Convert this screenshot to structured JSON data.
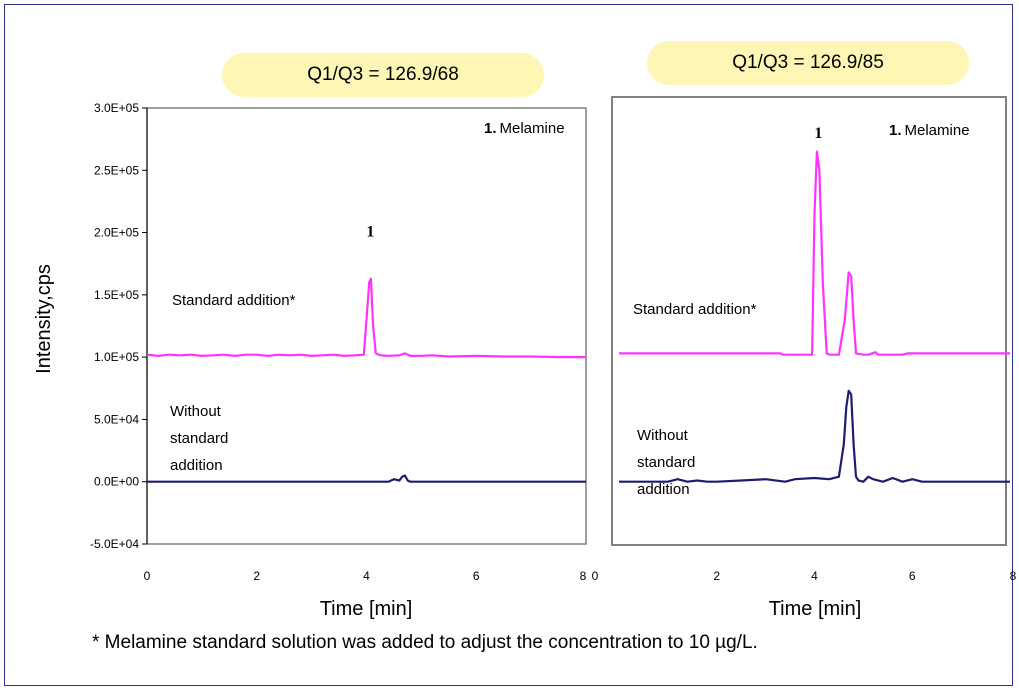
{
  "chart_data": [
    {
      "type": "line",
      "title": "Q1/Q3 = 126.9/68",
      "xlabel": "Time [min]",
      "ylabel": "Intensity,cps",
      "xlim": [
        0,
        8
      ],
      "ylim": [
        -50000,
        300000
      ],
      "x_ticks": [
        "0",
        "2",
        "4",
        "6",
        "8"
      ],
      "y_ticks": [
        "-5.0E+04",
        "0.0E+00",
        "5.0E+04",
        "1.0E+05",
        "1.5E+05",
        "2.0E+05",
        "2.5E+05",
        "3.0E+05"
      ],
      "legend_label": "1. Melamine",
      "legend_number": "1.",
      "legend_text": "Melamine",
      "peak_label": "1",
      "peak_label_position": {
        "x": 4.07,
        "y": 197000
      },
      "series": [
        {
          "name": "Standard addition*",
          "color": "#ff33ff",
          "label_lines": [
            "Standard addition*"
          ],
          "x": [
            0,
            0.2,
            0.4,
            0.6,
            0.8,
            1.0,
            1.2,
            1.4,
            1.6,
            1.8,
            2.0,
            2.2,
            2.4,
            2.6,
            2.8,
            3.0,
            3.2,
            3.4,
            3.6,
            3.8,
            3.95,
            4.0,
            4.05,
            4.08,
            4.12,
            4.17,
            4.25,
            4.4,
            4.6,
            4.7,
            4.8,
            5.0,
            5.2,
            5.5,
            6.0,
            6.5,
            7.0,
            7.5,
            8.0
          ],
          "y": [
            102000,
            101000,
            102000,
            101500,
            102000,
            101000,
            101500,
            102000,
            101000,
            102000,
            102000,
            101000,
            102000,
            101500,
            102000,
            101000,
            101500,
            102000,
            101000,
            101500,
            102000,
            130000,
            160000,
            163000,
            125000,
            103000,
            101500,
            101000,
            101500,
            103000,
            101000,
            101000,
            101500,
            100500,
            101000,
            100500,
            100500,
            100000,
            100000
          ]
        },
        {
          "name": "Without standard addition",
          "color": "#1c1c73",
          "label_lines": [
            "Without",
            "standard",
            "addition"
          ],
          "x": [
            0,
            1,
            2,
            3,
            4,
            4.4,
            4.5,
            4.6,
            4.65,
            4.7,
            4.75,
            4.8,
            4.9,
            5.0,
            6.0,
            7.0,
            8.0
          ],
          "y": [
            0,
            0,
            0,
            0,
            0,
            0,
            2000,
            1000,
            4000,
            5000,
            1000,
            0,
            0,
            0,
            0,
            0,
            0
          ]
        }
      ]
    },
    {
      "type": "line",
      "title": "Q1/Q3 = 126.9/85",
      "xlabel": "Time [min]",
      "ylabel": "",
      "xlim": [
        0,
        8
      ],
      "ylim": [
        -50000,
        300000
      ],
      "x_ticks": [
        "0",
        "2",
        "4",
        "6",
        "8"
      ],
      "legend_label": "1. Melamine",
      "legend_number": "1.",
      "legend_text": "Melamine",
      "peak_label": "1",
      "peak_label_position": {
        "x": 4.08,
        "y": 276000
      },
      "series": [
        {
          "name": "Standard addition*",
          "color": "#ff33ff",
          "label_lines": [
            "Standard addition*"
          ],
          "x": [
            0,
            1.0,
            2.0,
            3.3,
            3.35,
            3.6,
            3.8,
            3.95,
            4.0,
            4.05,
            4.1,
            4.17,
            4.25,
            4.3,
            4.5,
            4.62,
            4.7,
            4.75,
            4.8,
            4.85,
            5.0,
            5.1,
            5.25,
            5.3,
            5.8,
            5.9,
            6.5,
            7.0,
            8.0
          ],
          "y": [
            103000,
            103000,
            103000,
            103000,
            102000,
            102000,
            102000,
            102000,
            215000,
            265000,
            250000,
            160000,
            103000,
            102000,
            102000,
            130000,
            168000,
            165000,
            130000,
            103000,
            102000,
            102000,
            104000,
            102000,
            102000,
            103000,
            103000,
            103000,
            103000
          ]
        },
        {
          "name": "Without standard addition",
          "color": "#1c1c73",
          "label_lines": [
            "Without",
            "standard",
            "addition"
          ],
          "x": [
            0,
            0.5,
            1.0,
            1.2,
            1.4,
            1.6,
            1.8,
            2.0,
            2.5,
            3.0,
            3.4,
            3.6,
            4.0,
            4.3,
            4.5,
            4.6,
            4.65,
            4.7,
            4.75,
            4.8,
            4.85,
            4.9,
            5.0,
            5.1,
            5.2,
            5.4,
            5.6,
            5.8,
            6.0,
            6.2,
            7.0,
            8.0
          ],
          "y": [
            0,
            0,
            0,
            2000,
            0,
            1000,
            0,
            0,
            1000,
            2000,
            0,
            2000,
            3000,
            2000,
            4000,
            30000,
            60000,
            73000,
            70000,
            30000,
            4000,
            1000,
            0,
            4000,
            2000,
            0,
            3000,
            0,
            2000,
            0,
            0,
            0
          ]
        }
      ]
    }
  ],
  "footnote": "* Melamine standard solution was added to adjust the concentration to  10 µg/L."
}
